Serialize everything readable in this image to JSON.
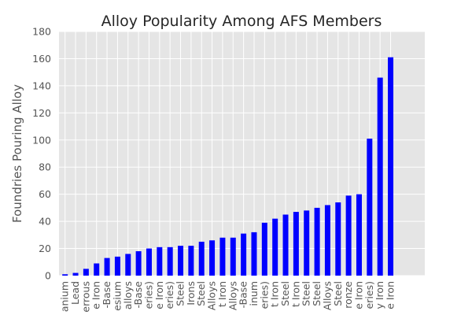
{
  "chart_data": {
    "type": "bar",
    "title": "Alloy Popularity Among AFS Members",
    "xlabel": "",
    "ylabel": "Foundries Pouring Alloy",
    "ylim": [
      0,
      180
    ],
    "yticks": [
      0,
      20,
      40,
      60,
      80,
      100,
      120,
      140,
      160,
      180
    ],
    "grid": true,
    "legend": "none",
    "colors": {
      "bar": "#0000ff",
      "plot_bg": "#e5e5e5",
      "grid": "#ffffff",
      "text": "#555555"
    },
    "categories": [
      "anium",
      "Lead",
      "errous",
      "e Iron",
      "-Base",
      "esium",
      "alloys",
      "-Base",
      "eries)",
      "e Iron",
      "eries)",
      "Steel",
      "Irons",
      "Steel",
      "Alloys",
      "t Iron",
      "Alloys",
      "-Base",
      "inum",
      "eries)",
      "t Iron",
      "Steel",
      "t Iron",
      "Steel",
      "Steel",
      "Alloys",
      "Steel",
      "ronze",
      "e Iron",
      "eries)",
      "y Iron",
      "e Iron"
    ],
    "values": [
      1,
      2,
      5,
      9,
      13,
      14,
      16,
      18,
      20,
      21,
      21,
      22,
      22,
      25,
      26,
      28,
      28,
      31,
      32,
      39,
      42,
      45,
      47,
      48,
      50,
      52,
      54,
      59,
      60,
      101,
      146,
      161
    ]
  }
}
